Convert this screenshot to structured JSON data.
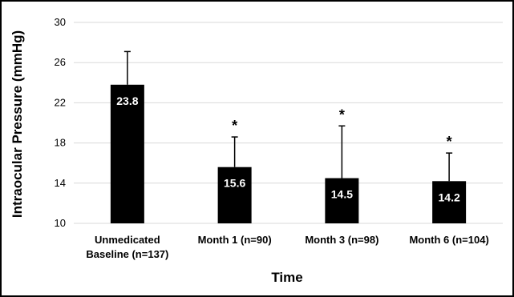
{
  "chart_data": {
    "type": "bar",
    "title": "",
    "xlabel": "Time",
    "ylabel": "Intraocular Pressure (mmHg)",
    "ylim": [
      10,
      30
    ],
    "yticks": [
      "10",
      "14",
      "18",
      "22",
      "26",
      "30"
    ],
    "grid": true,
    "categories": [
      [
        "Unmedicated",
        "Baseline (n=137)"
      ],
      [
        "Month 1 (n=90)"
      ],
      [
        "Month 3 (n=98)"
      ],
      [
        "Month 6 (n=104)"
      ]
    ],
    "values": [
      23.8,
      15.6,
      14.5,
      14.2
    ],
    "value_labels": [
      "23.8",
      "15.6",
      "14.5",
      "14.2"
    ],
    "error_upper": [
      27.1,
      18.6,
      19.7,
      17.0
    ],
    "significance": [
      "",
      "*",
      "*",
      "*"
    ],
    "bar_color": "#000000",
    "grid_color": "#d9d9d9"
  }
}
